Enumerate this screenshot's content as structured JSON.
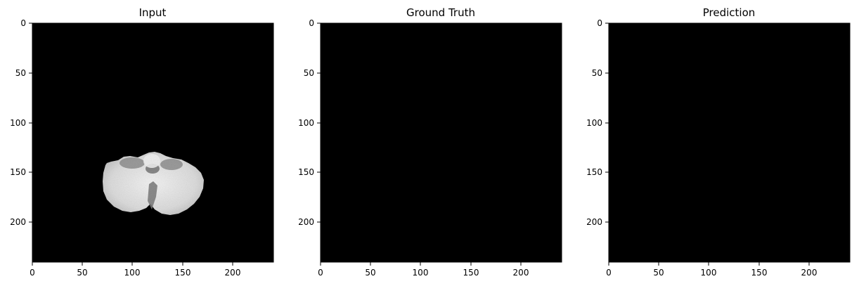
{
  "figure": {
    "panels": [
      {
        "title": "Input",
        "image": "brain-mri-slice",
        "x_ticks": [
          "0",
          "50",
          "100",
          "150",
          "200"
        ],
        "y_ticks": [
          "0",
          "50",
          "100",
          "150",
          "200"
        ]
      },
      {
        "title": "Ground Truth",
        "image": "empty-mask",
        "x_ticks": [
          "0",
          "50",
          "100",
          "150",
          "200"
        ],
        "y_ticks": [
          "0",
          "50",
          "100",
          "150",
          "200"
        ]
      },
      {
        "title": "Prediction",
        "image": "empty-mask",
        "x_ticks": [
          "0",
          "50",
          "100",
          "150",
          "200"
        ],
        "y_ticks": [
          "0",
          "50",
          "100",
          "150",
          "200"
        ]
      }
    ],
    "image_extent": [
      0,
      240
    ],
    "colors": {
      "background": "#ffffff",
      "image_background": "#000000",
      "tissue_light": "#e6e6e6",
      "tissue_dark": "#7a7a7a"
    }
  }
}
